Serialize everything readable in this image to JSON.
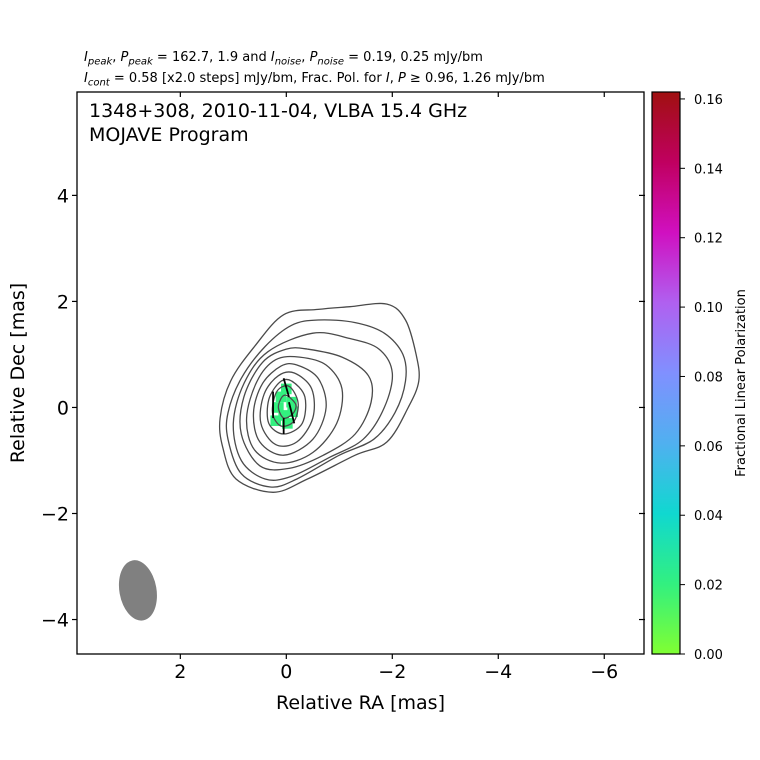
{
  "header": {
    "line1_parts": [
      "I",
      "peak",
      ", ",
      "P",
      "peak",
      " = 162.7, 1.9 and ",
      "I",
      "noise",
      ", ",
      "P",
      "noise",
      " = 0.19, 0.25 mJy/bm"
    ],
    "line2_parts": [
      "I",
      "cont",
      " = 0.58 [x2.0 steps] mJy/bm, Frac. Pol. for ",
      "I",
      ", ",
      "P",
      " ≥ 0.96, 1.26 mJy/bm"
    ]
  },
  "plot_text": {
    "line1": "1348+308, 2010-11-04, VLBA 15.4 GHz",
    "line2": "MOJAVE Program"
  },
  "chart_data": {
    "type": "contour",
    "xlabel": "Relative RA [mas]",
    "ylabel": "Relative Dec [mas]",
    "xlim": [
      3.95,
      -6.75
    ],
    "ylim": [
      -4.65,
      5.95
    ],
    "xticks": [
      2,
      0,
      -2,
      -4,
      -6
    ],
    "xtick_labels": [
      "2",
      "0",
      "−2",
      "−4",
      "−6"
    ],
    "yticks": [
      4,
      2,
      0,
      -2,
      -4
    ],
    "ytick_labels": [
      "4",
      "2",
      "0",
      "−2",
      "−4"
    ],
    "contour_color": "#4a4a4a",
    "contours": [
      [
        [
          -0.6,
          1.85
        ],
        [
          -1.2,
          1.9
        ],
        [
          -1.9,
          1.95
        ],
        [
          -2.25,
          1.65
        ],
        [
          -2.45,
          1.0
        ],
        [
          -2.5,
          0.5
        ],
        [
          -2.3,
          0.0
        ],
        [
          -1.9,
          -0.65
        ],
        [
          -1.3,
          -0.9
        ],
        [
          -0.4,
          -1.35
        ],
        [
          0.25,
          -1.6
        ],
        [
          0.95,
          -1.35
        ],
        [
          1.2,
          -0.75
        ],
        [
          1.25,
          -0.2
        ],
        [
          1.05,
          0.5
        ],
        [
          0.6,
          1.15
        ],
        [
          0.05,
          1.75
        ]
      ],
      [
        [
          -0.6,
          1.65
        ],
        [
          -1.3,
          1.6
        ],
        [
          -1.85,
          1.4
        ],
        [
          -2.2,
          1.0
        ],
        [
          -2.25,
          0.5
        ],
        [
          -2.05,
          -0.1
        ],
        [
          -1.65,
          -0.6
        ],
        [
          -1.0,
          -0.9
        ],
        [
          -0.2,
          -1.35
        ],
        [
          0.3,
          -1.5
        ],
        [
          0.85,
          -1.25
        ],
        [
          1.1,
          -0.6
        ],
        [
          1.1,
          -0.1
        ],
        [
          0.85,
          0.55
        ],
        [
          0.4,
          1.15
        ],
        [
          -0.1,
          1.55
        ]
      ],
      [
        [
          -0.5,
          1.4
        ],
        [
          -1.2,
          1.3
        ],
        [
          -1.75,
          1.1
        ],
        [
          -2.0,
          0.65
        ],
        [
          -1.85,
          0.0
        ],
        [
          -1.45,
          -0.6
        ],
        [
          -0.8,
          -0.95
        ],
        [
          -0.1,
          -1.3
        ],
        [
          0.4,
          -1.35
        ],
        [
          0.85,
          -1.0
        ],
        [
          1.0,
          -0.3
        ],
        [
          0.8,
          0.45
        ],
        [
          0.35,
          1.05
        ]
      ],
      [
        [
          -0.4,
          1.1
        ],
        [
          -1.05,
          0.95
        ],
        [
          -1.55,
          0.6
        ],
        [
          -1.6,
          0.1
        ],
        [
          -1.3,
          -0.5
        ],
        [
          -0.7,
          -0.9
        ],
        [
          -0.05,
          -1.15
        ],
        [
          0.5,
          -1.1
        ],
        [
          0.85,
          -0.5
        ],
        [
          0.8,
          0.2
        ],
        [
          0.45,
          0.85
        ],
        [
          0.0,
          1.1
        ]
      ],
      [
        [
          -0.25,
          0.95
        ],
        [
          -0.75,
          0.8
        ],
        [
          -1.05,
          0.35
        ],
        [
          -0.95,
          -0.3
        ],
        [
          -0.5,
          -0.85
        ],
        [
          0.1,
          -1.05
        ],
        [
          0.6,
          -0.8
        ],
        [
          0.75,
          -0.2
        ],
        [
          0.55,
          0.5
        ],
        [
          0.2,
          0.9
        ]
      ],
      [
        [
          -0.2,
          0.8
        ],
        [
          -0.6,
          0.55
        ],
        [
          -0.75,
          0.0
        ],
        [
          -0.5,
          -0.6
        ],
        [
          0.05,
          -0.9
        ],
        [
          0.5,
          -0.65
        ],
        [
          0.62,
          -0.1
        ],
        [
          0.45,
          0.45
        ],
        [
          0.1,
          0.78
        ]
      ],
      [
        [
          -0.15,
          0.65
        ],
        [
          -0.48,
          0.35
        ],
        [
          -0.5,
          -0.2
        ],
        [
          -0.2,
          -0.65
        ],
        [
          0.2,
          -0.7
        ],
        [
          0.48,
          -0.3
        ],
        [
          0.42,
          0.25
        ],
        [
          0.15,
          0.6
        ]
      ],
      [
        [
          -0.1,
          0.5
        ],
        [
          -0.35,
          0.2
        ],
        [
          -0.3,
          -0.3
        ],
        [
          0.05,
          -0.5
        ],
        [
          0.33,
          -0.3
        ],
        [
          0.33,
          0.15
        ],
        [
          0.12,
          0.48
        ]
      ],
      [
        [
          -0.05,
          0.4
        ],
        [
          -0.22,
          0.1
        ],
        [
          -0.15,
          -0.25
        ],
        [
          0.1,
          -0.35
        ],
        [
          0.26,
          -0.1
        ],
        [
          0.18,
          0.3
        ]
      ],
      [
        [
          -0.02,
          0.22
        ],
        [
          -0.18,
          0.05
        ],
        [
          -0.12,
          -0.12
        ],
        [
          0.05,
          -0.2
        ],
        [
          0.15,
          0.0
        ],
        [
          0.08,
          0.2
        ]
      ]
    ],
    "polarization_pixels": [
      [
        0.1,
        0.2
      ],
      [
        0.15,
        0.0
      ],
      [
        0.05,
        -0.15
      ],
      [
        -0.1,
        0.1
      ],
      [
        -0.12,
        -0.08
      ],
      [
        0.0,
        0.35
      ],
      [
        0.2,
        -0.25
      ],
      [
        -0.02,
        -0.3
      ]
    ],
    "polarization_fraction": 0.02,
    "evpa_ticks": [
      [
        [
          0.25,
          0.3
        ],
        [
          0.25,
          -0.2
        ]
      ],
      [
        [
          0.05,
          0.55
        ],
        [
          -0.05,
          0.2
        ]
      ],
      [
        [
          -0.05,
          0.1
        ],
        [
          -0.15,
          -0.3
        ]
      ],
      [
        [
          0.05,
          -0.2
        ],
        [
          0.05,
          -0.5
        ]
      ]
    ],
    "beam": {
      "x": 2.8,
      "y": -3.45,
      "major": 1.15,
      "minor": 0.7,
      "pa_deg": -10,
      "color": "#808080"
    },
    "colorbar": {
      "label": "Fractional Linear Polarization",
      "min": 0.0,
      "max": 0.162,
      "ticks": [
        0.0,
        0.02,
        0.04,
        0.06,
        0.08,
        0.1,
        0.12,
        0.14,
        0.16
      ],
      "tick_labels": [
        "0.00",
        "0.02",
        "0.04",
        "0.06",
        "0.08",
        "0.10",
        "0.12",
        "0.14",
        "0.16"
      ],
      "colors": [
        "#80ff32",
        "#32f080",
        "#10d8d0",
        "#50b0f0",
        "#8090ff",
        "#b060f0",
        "#d010c0",
        "#c00060",
        "#a01010"
      ]
    }
  }
}
